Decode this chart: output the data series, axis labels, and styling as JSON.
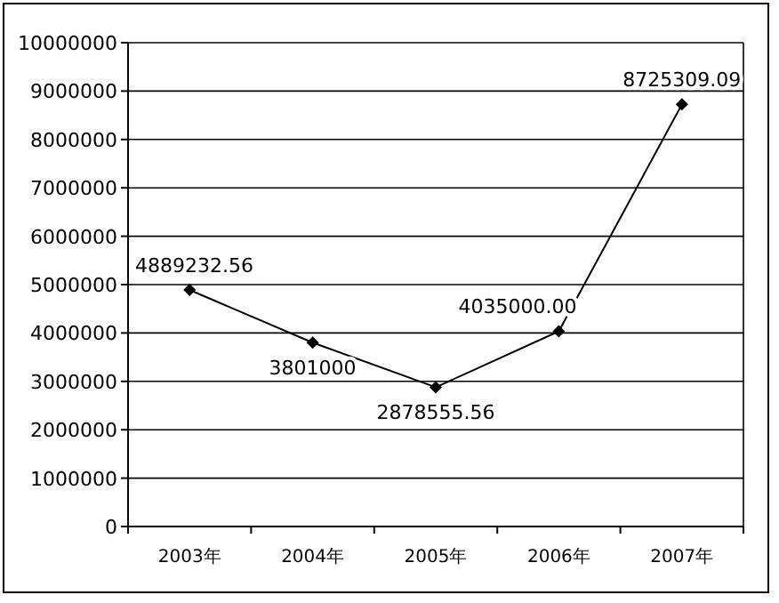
{
  "chart_data": {
    "type": "line",
    "categories": [
      "2003年",
      "2004年",
      "2005年",
      "2006年",
      "2007年"
    ],
    "series": [
      {
        "color": "#000000",
        "values": [
          4889232.56,
          3801000,
          2878555.56,
          4035000,
          8725309.09
        ]
      }
    ],
    "value_labels": [
      "4889232.56",
      "3801000",
      "2878555.56",
      "4035000.00",
      "8725309.09"
    ],
    "ylim": [
      0,
      10000000
    ],
    "yticks": [
      0,
      1000000,
      2000000,
      3000000,
      4000000,
      5000000,
      6000000,
      7000000,
      8000000,
      9000000,
      10000000
    ],
    "grid": "y",
    "marker": "diamond",
    "line_style": "solid"
  }
}
